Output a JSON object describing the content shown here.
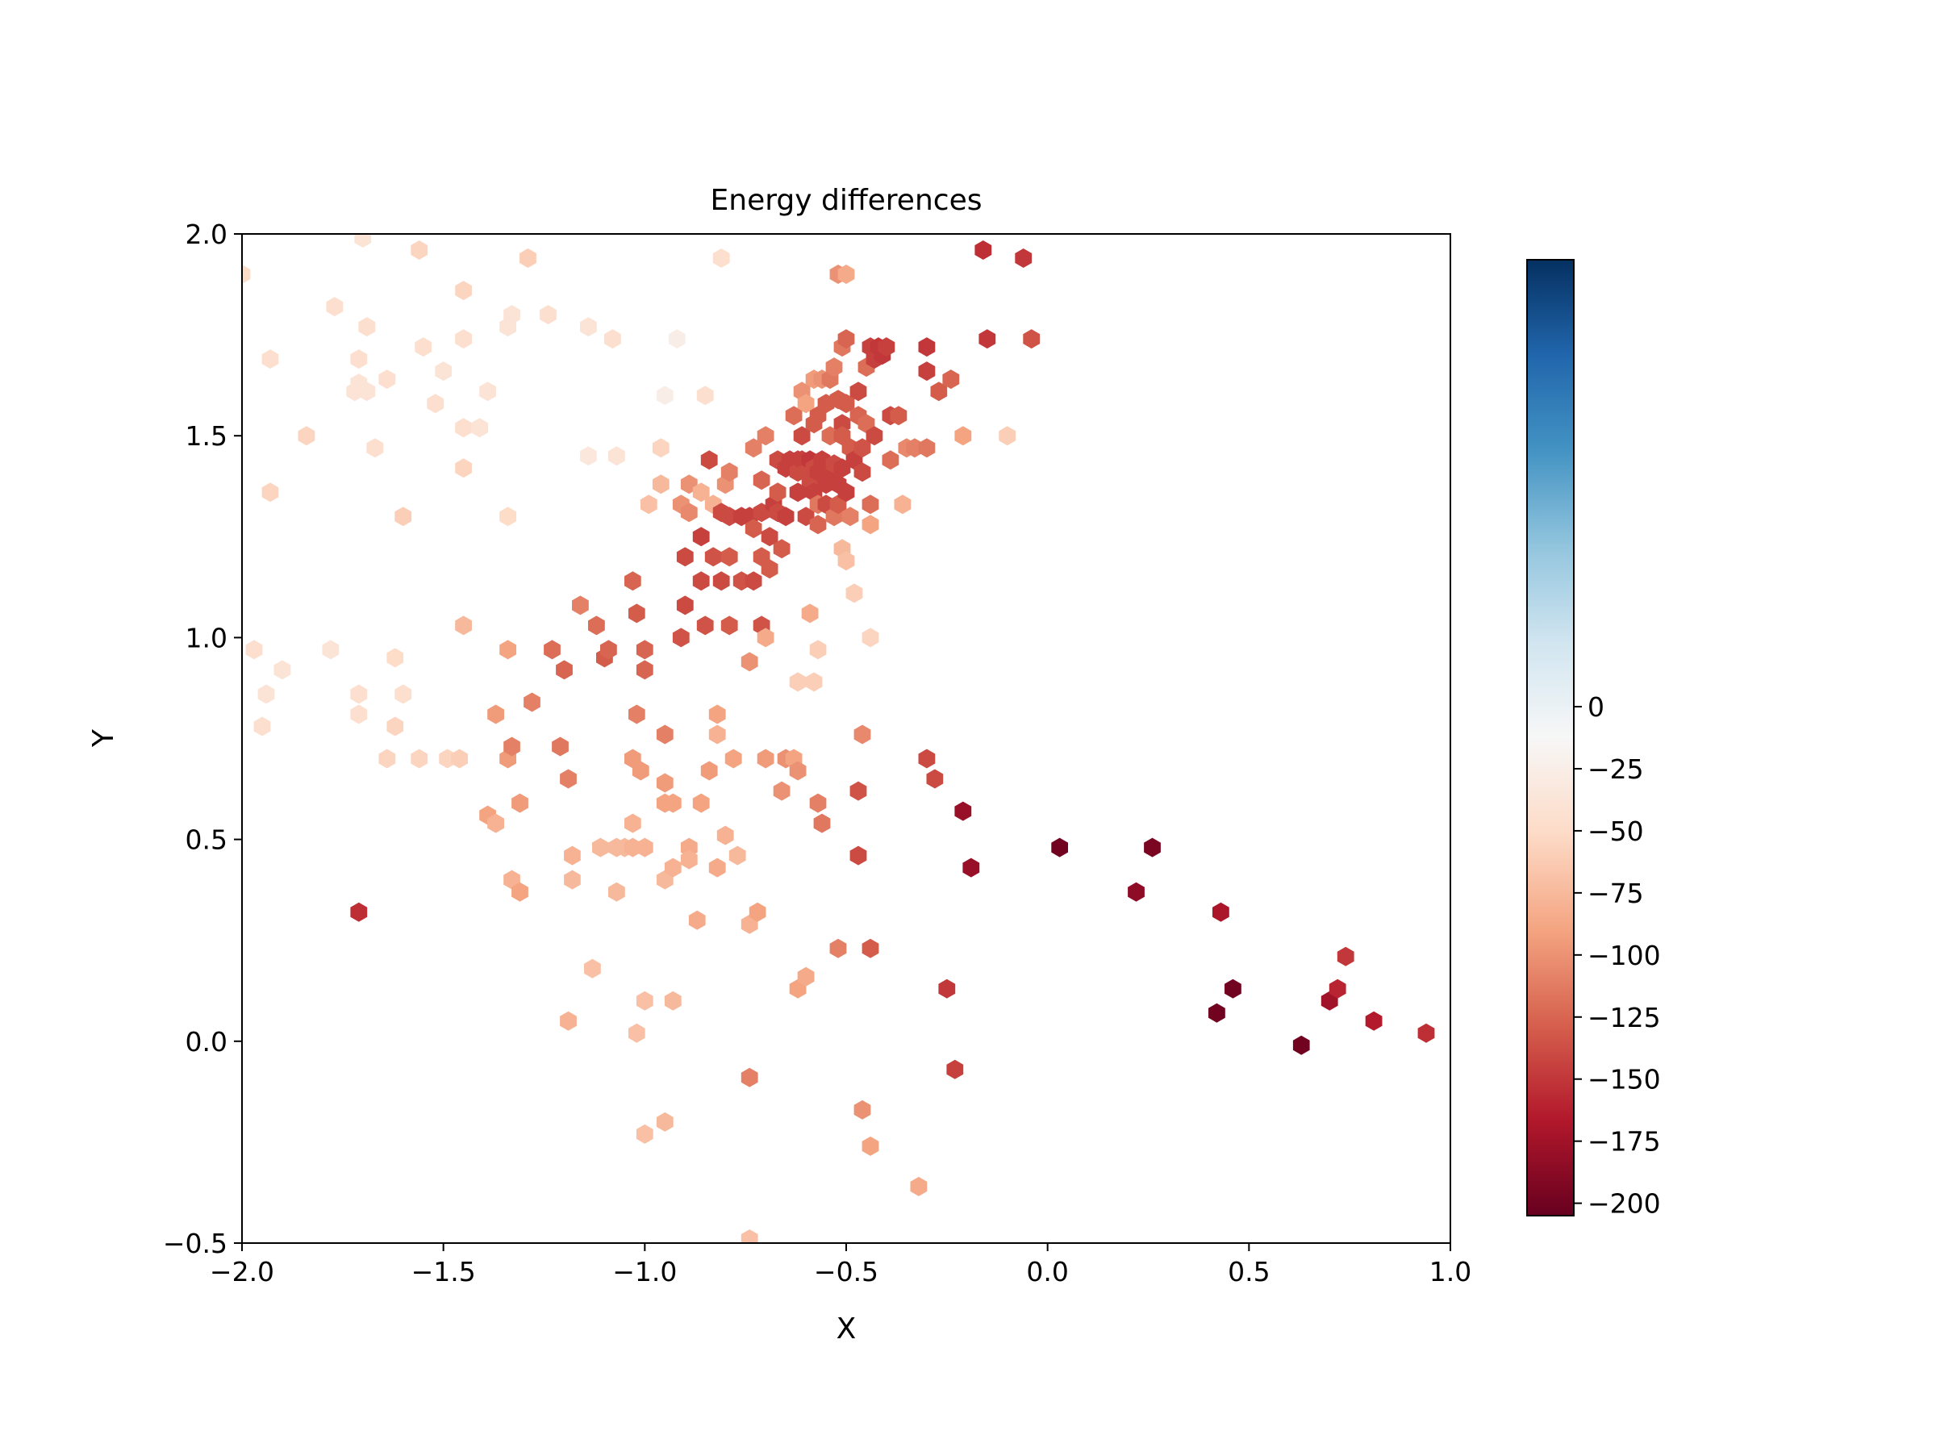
{
  "chart_data": {
    "type": "hexbin",
    "title": "Energy differences",
    "xlabel": "X",
    "ylabel": "Y",
    "xlim": [
      -2.0,
      1.0
    ],
    "ylim": [
      -0.5,
      2.0
    ],
    "x_ticks": [
      "−2.0",
      "−1.5",
      "−1.0",
      "−0.5",
      "0.0",
      "0.5",
      "1.0"
    ],
    "x_tick_values": [
      -2.0,
      -1.5,
      -1.0,
      -0.5,
      0.0,
      0.5,
      1.0
    ],
    "y_ticks": [
      "−0.5",
      "0.0",
      "0.5",
      "1.0",
      "1.5",
      "2.0"
    ],
    "y_tick_values": [
      -0.5,
      0.0,
      0.5,
      1.0,
      1.5,
      2.0
    ],
    "grid": false,
    "colorbar": {
      "colormap": "RdBu",
      "range": [
        -205,
        180
      ],
      "ticks": [
        "0",
        "−25",
        "−50",
        "−75",
        "−100",
        "−125",
        "−150",
        "−175",
        "−200"
      ],
      "tick_values": [
        0,
        -25,
        -50,
        -75,
        -100,
        -125,
        -150,
        -175,
        -200
      ],
      "stops": [
        "#67001f",
        "#b2182b",
        "#d6604d",
        "#f4a582",
        "#fddbc7",
        "#f7f7f7",
        "#d1e5f0",
        "#92c5de",
        "#4393c3",
        "#2166ac",
        "#053061"
      ]
    },
    "points": [
      [
        -2.0,
        1.9,
        -50
      ],
      [
        -1.97,
        0.97,
        -45
      ],
      [
        -1.95,
        0.78,
        -45
      ],
      [
        -1.94,
        0.86,
        -40
      ],
      [
        -1.93,
        1.69,
        -45
      ],
      [
        -1.93,
        1.36,
        -55
      ],
      [
        -1.9,
        0.92,
        -40
      ],
      [
        -1.84,
        1.5,
        -55
      ],
      [
        -1.78,
        0.97,
        -40
      ],
      [
        -1.77,
        1.82,
        -45
      ],
      [
        -1.7,
        1.99,
        -40
      ],
      [
        -1.69,
        1.77,
        -45
      ],
      [
        -1.71,
        1.69,
        -45
      ],
      [
        -1.71,
        1.63,
        -40
      ],
      [
        -1.72,
        1.61,
        -40
      ],
      [
        -1.69,
        1.61,
        -40
      ],
      [
        -1.67,
        1.47,
        -45
      ],
      [
        -1.71,
        0.86,
        -45
      ],
      [
        -1.71,
        0.81,
        -45
      ],
      [
        -1.71,
        0.32,
        -155
      ],
      [
        -1.64,
        1.64,
        -45
      ],
      [
        -1.62,
        0.95,
        -50
      ],
      [
        -1.62,
        0.78,
        -55
      ],
      [
        -1.6,
        1.3,
        -60
      ],
      [
        -1.6,
        0.86,
        -45
      ],
      [
        -1.64,
        0.7,
        -55
      ],
      [
        -1.56,
        1.96,
        -55
      ],
      [
        -1.55,
        1.72,
        -45
      ],
      [
        -1.52,
        1.58,
        -45
      ],
      [
        -1.5,
        1.66,
        -40
      ],
      [
        -1.56,
        0.7,
        -55
      ],
      [
        -1.49,
        0.7,
        -55
      ],
      [
        -1.46,
        0.7,
        -60
      ],
      [
        -1.45,
        1.86,
        -55
      ],
      [
        -1.45,
        1.74,
        -45
      ],
      [
        -1.45,
        1.52,
        -45
      ],
      [
        -1.45,
        1.42,
        -55
      ],
      [
        -1.45,
        1.03,
        -75
      ],
      [
        -1.41,
        1.52,
        -40
      ],
      [
        -1.39,
        1.61,
        -40
      ],
      [
        -1.37,
        0.81,
        -95
      ],
      [
        -1.39,
        0.56,
        -90
      ],
      [
        -1.37,
        0.54,
        -80
      ],
      [
        -1.34,
        1.77,
        -40
      ],
      [
        -1.33,
        1.8,
        -40
      ],
      [
        -1.34,
        1.3,
        -50
      ],
      [
        -1.34,
        0.97,
        -90
      ],
      [
        -1.34,
        0.7,
        -95
      ],
      [
        -1.33,
        0.73,
        -110
      ],
      [
        -1.33,
        0.4,
        -80
      ],
      [
        -1.31,
        0.37,
        -90
      ],
      [
        -1.31,
        0.59,
        -95
      ],
      [
        -1.29,
        1.94,
        -60
      ],
      [
        -1.28,
        0.84,
        -110
      ],
      [
        -1.24,
        1.8,
        -45
      ],
      [
        -1.23,
        0.97,
        -120
      ],
      [
        -1.21,
        0.73,
        -115
      ],
      [
        -1.2,
        0.92,
        -125
      ],
      [
        -1.19,
        0.65,
        -110
      ],
      [
        -1.19,
        0.05,
        -80
      ],
      [
        -1.18,
        0.46,
        -80
      ],
      [
        -1.18,
        0.4,
        -75
      ],
      [
        -1.16,
        1.08,
        -110
      ],
      [
        -1.14,
        1.77,
        -40
      ],
      [
        -1.14,
        1.45,
        -35
      ],
      [
        -1.13,
        0.18,
        -70
      ],
      [
        -1.12,
        1.03,
        -120
      ],
      [
        -1.11,
        0.48,
        -75
      ],
      [
        -1.1,
        0.95,
        -130
      ],
      [
        -1.09,
        0.97,
        -125
      ],
      [
        -1.08,
        1.74,
        -45
      ],
      [
        -1.07,
        1.45,
        -40
      ],
      [
        -1.07,
        0.48,
        -75
      ],
      [
        -1.07,
        0.37,
        -75
      ],
      [
        -1.05,
        0.48,
        -75
      ],
      [
        -1.03,
        1.14,
        -125
      ],
      [
        -1.02,
        0.81,
        -110
      ],
      [
        -1.03,
        0.7,
        -95
      ],
      [
        -1.03,
        0.54,
        -80
      ],
      [
        -1.03,
        0.48,
        -80
      ],
      [
        -1.02,
        0.02,
        -70
      ],
      [
        -1.02,
        1.06,
        -130
      ],
      [
        -1.01,
        0.67,
        -95
      ],
      [
        -1.0,
        0.48,
        -80
      ],
      [
        -1.0,
        0.97,
        -125
      ],
      [
        -1.0,
        0.92,
        -125
      ],
      [
        -1.0,
        0.1,
        -70
      ],
      [
        -1.0,
        -0.23,
        -70
      ],
      [
        -0.99,
        1.33,
        -70
      ],
      [
        -0.96,
        1.47,
        -55
      ],
      [
        -0.96,
        1.38,
        -75
      ],
      [
        -0.95,
        1.6,
        -25
      ],
      [
        -0.95,
        0.76,
        -110
      ],
      [
        -0.95,
        0.64,
        -95
      ],
      [
        -0.95,
        0.59,
        -90
      ],
      [
        -0.95,
        0.4,
        -75
      ],
      [
        -0.95,
        -0.2,
        -75
      ],
      [
        -0.93,
        0.43,
        -80
      ],
      [
        -0.93,
        0.59,
        -90
      ],
      [
        -0.93,
        0.1,
        -75
      ],
      [
        -0.92,
        1.74,
        -25
      ],
      [
        -0.91,
        1.33,
        -100
      ],
      [
        -0.91,
        1.0,
        -135
      ],
      [
        -0.9,
        1.08,
        -140
      ],
      [
        -0.9,
        1.2,
        -140
      ],
      [
        -0.89,
        1.38,
        -100
      ],
      [
        -0.89,
        1.31,
        -105
      ],
      [
        -0.89,
        0.48,
        -85
      ],
      [
        -0.89,
        0.45,
        -80
      ],
      [
        -0.87,
        0.3,
        -85
      ],
      [
        -0.86,
        1.25,
        -145
      ],
      [
        -0.86,
        1.14,
        -140
      ],
      [
        -0.86,
        1.36,
        -80
      ],
      [
        -0.86,
        0.59,
        -90
      ],
      [
        -0.85,
        1.03,
        -135
      ],
      [
        -0.84,
        1.44,
        -140
      ],
      [
        -0.85,
        1.6,
        -45
      ],
      [
        -0.84,
        0.67,
        -95
      ],
      [
        -0.83,
        1.33,
        -80
      ],
      [
        -0.83,
        1.2,
        -135
      ],
      [
        -0.82,
        0.81,
        -90
      ],
      [
        -0.82,
        0.76,
        -80
      ],
      [
        -0.82,
        0.43,
        -85
      ],
      [
        -0.81,
        1.94,
        -45
      ],
      [
        -0.81,
        1.31,
        -140
      ],
      [
        -0.81,
        1.14,
        -140
      ],
      [
        -0.8,
        1.38,
        -100
      ],
      [
        -0.8,
        0.51,
        -80
      ],
      [
        -0.79,
        1.41,
        -110
      ],
      [
        -0.79,
        1.2,
        -130
      ],
      [
        -0.79,
        1.03,
        -130
      ],
      [
        -0.79,
        1.3,
        -140
      ],
      [
        -0.78,
        0.7,
        -90
      ],
      [
        -0.77,
        0.46,
        -75
      ],
      [
        -0.76,
        1.3,
        -145
      ],
      [
        -0.76,
        1.14,
        -135
      ],
      [
        -0.74,
        1.3,
        -145
      ],
      [
        -0.74,
        0.29,
        -80
      ],
      [
        -0.74,
        0.94,
        -100
      ],
      [
        -0.74,
        -0.09,
        -110
      ],
      [
        -0.74,
        -0.49,
        -70
      ],
      [
        -0.73,
        1.47,
        -110
      ],
      [
        -0.73,
        1.27,
        -130
      ],
      [
        -0.73,
        1.14,
        -140
      ],
      [
        -0.72,
        0.32,
        -90
      ],
      [
        -0.71,
        1.39,
        -125
      ],
      [
        -0.71,
        1.31,
        -140
      ],
      [
        -0.71,
        1.2,
        -130
      ],
      [
        -0.71,
        1.03,
        -135
      ],
      [
        -0.7,
        1.5,
        -110
      ],
      [
        -0.7,
        1.0,
        -85
      ],
      [
        -0.7,
        0.7,
        -95
      ],
      [
        -0.69,
        1.25,
        -140
      ],
      [
        -0.69,
        1.17,
        -130
      ],
      [
        -0.68,
        1.33,
        -145
      ],
      [
        -0.67,
        1.44,
        -140
      ],
      [
        -0.67,
        1.36,
        -130
      ],
      [
        -0.67,
        1.31,
        -140
      ],
      [
        -0.66,
        1.22,
        -130
      ],
      [
        -0.66,
        0.62,
        -100
      ],
      [
        -0.65,
        1.42,
        -145
      ],
      [
        -0.65,
        1.3,
        -145
      ],
      [
        -0.65,
        0.7,
        -100
      ],
      [
        -0.64,
        1.44,
        -145
      ],
      [
        -0.63,
        1.55,
        -120
      ],
      [
        -0.63,
        0.7,
        -90
      ],
      [
        -0.62,
        1.44,
        -145
      ],
      [
        -0.62,
        1.41,
        -140
      ],
      [
        -0.62,
        1.36,
        -145
      ],
      [
        -0.62,
        0.67,
        -100
      ],
      [
        -0.62,
        0.89,
        -60
      ],
      [
        -0.62,
        0.13,
        -90
      ],
      [
        -0.61,
        1.61,
        -100
      ],
      [
        -0.61,
        1.5,
        -140
      ],
      [
        -0.61,
        1.44,
        -145
      ],
      [
        -0.6,
        1.41,
        -140
      ],
      [
        -0.6,
        1.3,
        -140
      ],
      [
        -0.6,
        1.58,
        -90
      ],
      [
        -0.6,
        0.16,
        -85
      ],
      [
        -0.59,
        1.44,
        -150
      ],
      [
        -0.59,
        1.39,
        -140
      ],
      [
        -0.59,
        1.06,
        -85
      ],
      [
        -0.58,
        1.64,
        -95
      ],
      [
        -0.58,
        1.53,
        -130
      ],
      [
        -0.58,
        1.42,
        -140
      ],
      [
        -0.58,
        1.36,
        -145
      ],
      [
        -0.58,
        0.89,
        -60
      ],
      [
        -0.57,
        1.55,
        -130
      ],
      [
        -0.57,
        1.41,
        -145
      ],
      [
        -0.57,
        1.28,
        -125
      ],
      [
        -0.57,
        1.33,
        -115
      ],
      [
        -0.57,
        0.97,
        -60
      ],
      [
        -0.57,
        0.59,
        -110
      ],
      [
        -0.56,
        1.64,
        -100
      ],
      [
        -0.56,
        1.44,
        -145
      ],
      [
        -0.56,
        0.54,
        -115
      ],
      [
        -0.55,
        1.58,
        -130
      ],
      [
        -0.55,
        1.38,
        -145
      ],
      [
        -0.55,
        1.33,
        -140
      ],
      [
        -0.54,
        1.64,
        -115
      ],
      [
        -0.54,
        1.41,
        -145
      ],
      [
        -0.54,
        1.5,
        -120
      ],
      [
        -0.53,
        1.67,
        -110
      ],
      [
        -0.53,
        1.43,
        -140
      ],
      [
        -0.53,
        1.3,
        -115
      ],
      [
        -0.52,
        1.9,
        -100
      ],
      [
        -0.52,
        1.59,
        -130
      ],
      [
        -0.52,
        1.38,
        -145
      ],
      [
        -0.52,
        1.33,
        -130
      ],
      [
        -0.52,
        0.23,
        -110
      ],
      [
        -0.51,
        1.72,
        -115
      ],
      [
        -0.51,
        1.53,
        -140
      ],
      [
        -0.51,
        1.42,
        -145
      ],
      [
        -0.51,
        1.22,
        -75
      ],
      [
        -0.51,
        1.5,
        -130
      ],
      [
        -0.5,
        1.74,
        -125
      ],
      [
        -0.5,
        1.58,
        -130
      ],
      [
        -0.5,
        1.36,
        -145
      ],
      [
        -0.5,
        1.19,
        -70
      ],
      [
        -0.5,
        1.9,
        -85
      ],
      [
        -0.49,
        1.47,
        -130
      ],
      [
        -0.49,
        1.3,
        -110
      ],
      [
        -0.48,
        1.44,
        -145
      ],
      [
        -0.48,
        1.11,
        -60
      ],
      [
        -0.47,
        1.61,
        -140
      ],
      [
        -0.47,
        1.55,
        -125
      ],
      [
        -0.47,
        0.62,
        -135
      ],
      [
        -0.47,
        0.46,
        -140
      ],
      [
        -0.46,
        1.41,
        -140
      ],
      [
        -0.46,
        1.47,
        -135
      ],
      [
        -0.46,
        0.76,
        -105
      ],
      [
        -0.46,
        -0.17,
        -100
      ],
      [
        -0.45,
        1.53,
        -120
      ],
      [
        -0.45,
        1.67,
        -120
      ],
      [
        -0.44,
        1.72,
        -145
      ],
      [
        -0.44,
        1.33,
        -120
      ],
      [
        -0.44,
        1.28,
        -90
      ],
      [
        -0.44,
        1.0,
        -55
      ],
      [
        -0.44,
        0.23,
        -130
      ],
      [
        -0.44,
        -0.26,
        -90
      ],
      [
        -0.43,
        1.69,
        -145
      ],
      [
        -0.43,
        1.5,
        -140
      ],
      [
        -0.42,
        1.72,
        -150
      ],
      [
        -0.41,
        1.7,
        -150
      ],
      [
        -0.4,
        1.72,
        -145
      ],
      [
        -0.39,
        1.55,
        -140
      ],
      [
        -0.39,
        1.44,
        -120
      ],
      [
        -0.37,
        1.55,
        -130
      ],
      [
        -0.36,
        1.33,
        -80
      ],
      [
        -0.35,
        1.47,
        -105
      ],
      [
        -0.33,
        1.47,
        -110
      ],
      [
        -0.32,
        -0.36,
        -85
      ],
      [
        -0.3,
        1.47,
        -115
      ],
      [
        -0.3,
        0.7,
        -140
      ],
      [
        -0.3,
        1.72,
        -150
      ],
      [
        -0.3,
        1.66,
        -145
      ],
      [
        -0.28,
        0.65,
        -140
      ],
      [
        -0.27,
        1.61,
        -130
      ],
      [
        -0.25,
        0.13,
        -150
      ],
      [
        -0.24,
        1.64,
        -125
      ],
      [
        -0.23,
        -0.07,
        -145
      ],
      [
        -0.21,
        1.5,
        -90
      ],
      [
        -0.21,
        0.57,
        -180
      ],
      [
        -0.19,
        0.43,
        -180
      ],
      [
        -0.16,
        1.96,
        -155
      ],
      [
        -0.15,
        1.74,
        -150
      ],
      [
        -0.1,
        1.5,
        -60
      ],
      [
        -0.06,
        1.94,
        -150
      ],
      [
        -0.04,
        1.74,
        -135
      ],
      [
        0.03,
        0.48,
        -200
      ],
      [
        0.22,
        0.37,
        -185
      ],
      [
        0.26,
        0.48,
        -195
      ],
      [
        0.43,
        0.32,
        -170
      ],
      [
        0.42,
        0.07,
        -200
      ],
      [
        0.46,
        0.13,
        -200
      ],
      [
        0.63,
        -0.01,
        -200
      ],
      [
        0.7,
        0.1,
        -175
      ],
      [
        0.72,
        0.13,
        -160
      ],
      [
        0.74,
        0.21,
        -150
      ],
      [
        0.81,
        0.05,
        -165
      ],
      [
        0.94,
        0.02,
        -155
      ]
    ]
  }
}
